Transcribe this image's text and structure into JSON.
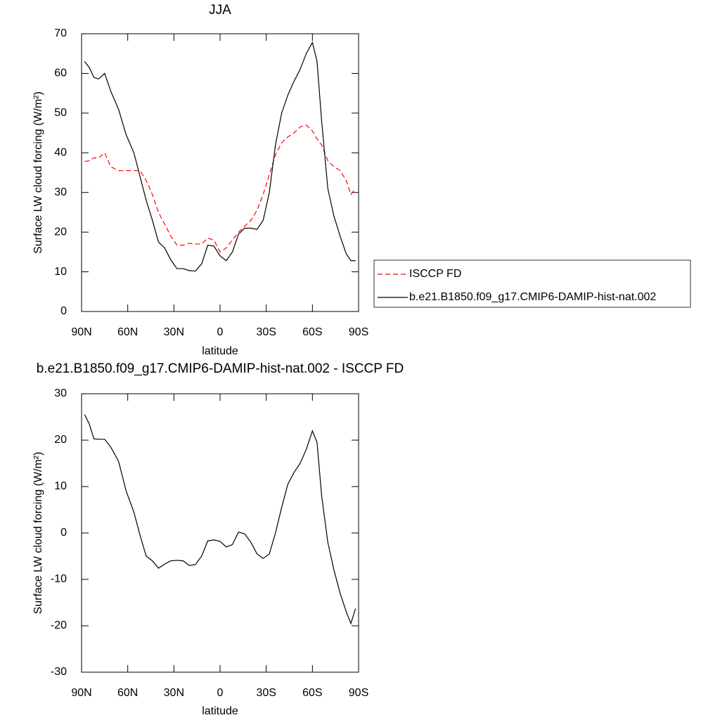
{
  "chart_data": [
    {
      "type": "line",
      "title": "JJA",
      "xlabel": "latitude",
      "ylabel": "Surface LW cloud forcing (W/m²)",
      "x": [
        88,
        85,
        82,
        79,
        75,
        71,
        66,
        61,
        56,
        52,
        48,
        44,
        40,
        36,
        32,
        28,
        24,
        20,
        16,
        12,
        8,
        4,
        0,
        -4,
        -8,
        -12,
        -16,
        -20,
        -24,
        -28,
        -32,
        -36,
        -40,
        -44,
        -48,
        -52,
        -56,
        -60,
        -63,
        -66,
        -70,
        -74,
        -78,
        -82,
        -85,
        -88
      ],
      "series": [
        {
          "name": "ISCCP FD",
          "color": "#ff0000",
          "dashed": true,
          "values": [
            37.8,
            38,
            38.7,
            38.7,
            40,
            36.5,
            35.5,
            35.5,
            35.5,
            35.5,
            33,
            29.5,
            25,
            22,
            19,
            16.7,
            16.7,
            17.2,
            17,
            17,
            18.5,
            18,
            15,
            16,
            18,
            20,
            21.5,
            23,
            25.5,
            29.5,
            34.5,
            39.5,
            42.5,
            44,
            45,
            46.5,
            47,
            45.5,
            43.5,
            42,
            38,
            36.5,
            35.5,
            33,
            29.5,
            31
          ]
        },
        {
          "name": "b.e21.B1850.f09_g17.CMIP6-DAMIP-hist-nat.002",
          "color": "#000000",
          "dashed": false,
          "values": [
            63,
            61.5,
            59,
            58.6,
            60,
            55.5,
            51,
            44.5,
            40,
            34,
            28,
            23,
            17.5,
            16,
            13,
            10.8,
            10.8,
            10.3,
            10.2,
            12,
            16.7,
            16.5,
            14,
            12.8,
            15,
            19.5,
            21,
            21,
            20.7,
            23,
            30,
            42,
            50,
            54.5,
            58,
            61,
            65,
            67.8,
            63,
            48,
            31,
            24,
            19,
            14.5,
            12.8,
            12.8
          ]
        }
      ],
      "xlim": [
        90,
        -90
      ],
      "xticks": [
        {
          "value": 90,
          "label": "90N"
        },
        {
          "value": 60,
          "label": "60N"
        },
        {
          "value": 30,
          "label": "30N"
        },
        0,
        {
          "value": -30,
          "label": "30S"
        },
        {
          "value": -60,
          "label": "60S"
        },
        {
          "value": -90,
          "label": "90S"
        }
      ],
      "ylim": [
        0,
        70
      ],
      "yticks": [
        0,
        10,
        20,
        30,
        40,
        50,
        60,
        70
      ],
      "legend": "right"
    },
    {
      "type": "line",
      "title": "b.e21.B1850.f09_g17.CMIP6-DAMIP-hist-nat.002 - ISCCP FD",
      "xlabel": "latitude",
      "ylabel": "Surface LW cloud forcing (W/m²)",
      "x": [
        88,
        85,
        82,
        79,
        75,
        71,
        66,
        61,
        56,
        52,
        48,
        44,
        40,
        36,
        32,
        28,
        24,
        20,
        16,
        12,
        8,
        4,
        0,
        -4,
        -8,
        -12,
        -16,
        -20,
        -24,
        -28,
        -32,
        -36,
        -40,
        -44,
        -48,
        -52,
        -56,
        -60,
        -63,
        -66,
        -70,
        -74,
        -78,
        -82,
        -85,
        -88
      ],
      "values": [
        25.5,
        23.5,
        20.3,
        20.2,
        20.2,
        18.5,
        15.5,
        9,
        4.5,
        -0.5,
        -5,
        -6,
        -7.6,
        -6.7,
        -6,
        -5.9,
        -6,
        -7,
        -6.8,
        -5,
        -1.7,
        -1.5,
        -1.8,
        -3,
        -2.5,
        0.2,
        -0.2,
        -2,
        -4.5,
        -5.5,
        -4.5,
        0,
        5.5,
        10.5,
        13,
        15,
        18,
        22,
        19.5,
        8,
        -2,
        -8,
        -13,
        -17,
        -19.5,
        -16.3
      ],
      "color": "#000000",
      "xlim": [
        90,
        -90
      ],
      "xticks": [
        {
          "value": 90,
          "label": "90N"
        },
        {
          "value": 60,
          "label": "60N"
        },
        {
          "value": 30,
          "label": "30N"
        },
        0,
        {
          "value": -30,
          "label": "30S"
        },
        {
          "value": -60,
          "label": "60S"
        },
        {
          "value": -90,
          "label": "90S"
        }
      ],
      "ylim": [
        -30,
        30
      ],
      "yticks": [
        -30,
        -20,
        -10,
        0,
        10,
        20,
        30
      ]
    }
  ]
}
